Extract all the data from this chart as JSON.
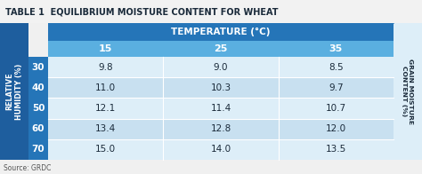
{
  "title": "TABLE 1  EQUILIBRIUM MOISTURE CONTENT FOR WHEAT",
  "temp_header": "TEMPERATURE (°C)",
  "temp_cols": [
    "15",
    "25",
    "35"
  ],
  "humidity_rows": [
    "30",
    "40",
    "50",
    "60",
    "70"
  ],
  "values": [
    [
      "9.8",
      "9.0",
      "8.5"
    ],
    [
      "11.0",
      "10.3",
      "9.7"
    ],
    [
      "12.1",
      "11.4",
      "10.7"
    ],
    [
      "13.4",
      "12.8",
      "12.0"
    ],
    [
      "15.0",
      "14.0",
      "13.5"
    ]
  ],
  "source": "Source: GRDC",
  "color_bg": "#f0f0f0",
  "color_header_dark": "#2575b8",
  "color_header_sub": "#5aafe0",
  "color_left_dark": "#1e5e9e",
  "color_row_label": "#2575b8",
  "color_data_alt1": "#ddeef8",
  "color_data_alt2": "#c8e0f0",
  "color_right_bg": "#ddeef8",
  "color_title_text": "#1a2a3a",
  "color_white": "#ffffff",
  "color_data_text": "#1a2a3a"
}
